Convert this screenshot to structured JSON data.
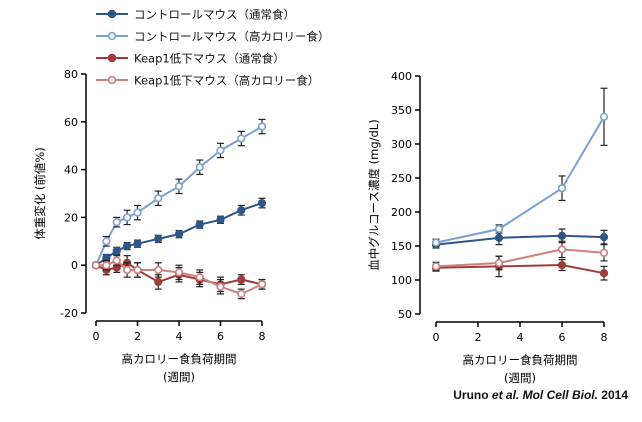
{
  "legend": [
    {
      "label": "コントロールマウス（通常食）",
      "color": "#2f5488",
      "marker": "filled"
    },
    {
      "label": "コントロールマウス（高カロリー食）",
      "color": "#7b9fd1",
      "marker": "open"
    },
    {
      "label": "Keap1低下マウス（通常食）",
      "color": "#9e3b3b",
      "marker": "filled"
    },
    {
      "label": "Keap1低下マウス（高カロリー食）",
      "color": "#cf7f7f",
      "marker": "open"
    }
  ],
  "citation": {
    "authors": "Uruno",
    "etal": "et al.",
    "journal": "Mol Cell Biol.",
    "year": "2014"
  },
  "chart_data": [
    {
      "type": "line",
      "ylabel": "体重変化 (前値%)",
      "xlabel": "高カロリー食負荷期間",
      "xlabel2": "(週間)",
      "xlim": [
        0,
        8
      ],
      "ylim": [
        -20,
        80
      ],
      "xticks": [
        0,
        2,
        4,
        6,
        8
      ],
      "yticks": [
        -20,
        0,
        20,
        40,
        60,
        80
      ],
      "x": [
        0,
        0.5,
        1,
        1.5,
        2,
        3,
        4,
        5,
        6,
        7,
        8
      ],
      "series": [
        {
          "name": "コントロールマウス（通常食）",
          "values": [
            0,
            3,
            6,
            8,
            9,
            11,
            13,
            17,
            19,
            23,
            26
          ],
          "err": [
            1,
            1.5,
            1.5,
            1.5,
            1.5,
            1.5,
            1.5,
            1.5,
            1.5,
            2,
            2
          ]
        },
        {
          "name": "コントロールマウス（高カロリー食）",
          "values": [
            0,
            10,
            18,
            20,
            22,
            28,
            33,
            41,
            48,
            53,
            58
          ],
          "err": [
            1,
            2,
            2,
            3,
            3,
            3,
            3,
            3,
            3,
            3,
            3
          ]
        },
        {
          "name": "Keap1低下マウス（通常食）",
          "values": [
            0,
            -2,
            -1,
            1,
            -2,
            -7,
            -4,
            -6,
            -8,
            -6,
            -8
          ],
          "err": [
            1,
            2,
            2,
            3,
            3,
            3,
            3,
            3,
            3,
            2,
            2
          ]
        },
        {
          "name": "Keap1低下マウス（高カロリー食）",
          "values": [
            0,
            0,
            2,
            -2,
            -2,
            -2,
            -3,
            -5,
            -9,
            -12,
            -8
          ],
          "err": [
            1,
            2,
            2,
            3,
            3,
            3,
            3,
            3,
            3,
            2,
            2
          ]
        }
      ]
    },
    {
      "type": "line",
      "ylabel": "血中グルコース濃度 (mg/dL)",
      "xlabel": "高カロリー食負荷期間",
      "xlabel2": "(週間)",
      "xlim": [
        0,
        8
      ],
      "ylim": [
        50,
        400
      ],
      "xticks": [
        0,
        2,
        4,
        6,
        8
      ],
      "yticks": [
        50,
        100,
        150,
        200,
        250,
        300,
        350,
        400
      ],
      "x": [
        0,
        3,
        6,
        8
      ],
      "series": [
        {
          "name": "コントロールマウス（通常食）",
          "values": [
            152,
            162,
            165,
            163
          ],
          "err": [
            5,
            10,
            10,
            10
          ]
        },
        {
          "name": "コントロールマウス（高カロリー食）",
          "values": [
            155,
            175,
            235,
            340
          ],
          "err": [
            5,
            6,
            18,
            42
          ]
        },
        {
          "name": "Keap1低下マウス（通常食）",
          "values": [
            118,
            120,
            122,
            110
          ],
          "err": [
            5,
            15,
            8,
            10
          ]
        },
        {
          "name": "Keap1低下マウス（高カロリー食）",
          "values": [
            120,
            125,
            145,
            140
          ],
          "err": [
            6,
            10,
            12,
            12
          ]
        }
      ]
    }
  ]
}
